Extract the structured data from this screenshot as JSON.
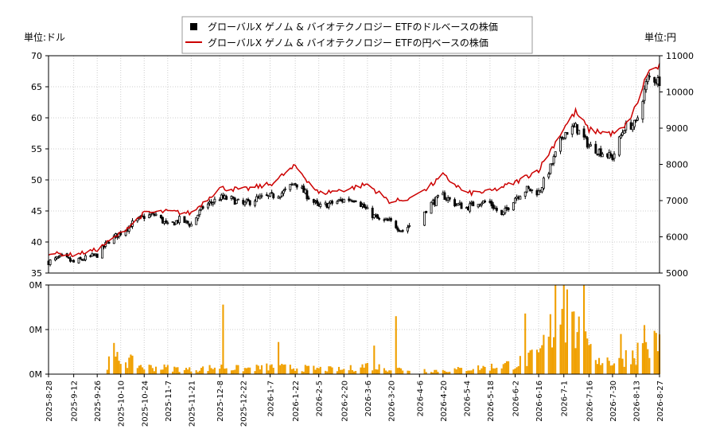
{
  "chart_data": [
    {
      "type": "candlestick",
      "legend": {
        "placement": "top-center",
        "entries": [
          {
            "label": "グローバルX ゲノム & バイオテクノロジー ETFのドルベースの株価",
            "color": "#000000",
            "marker": "square"
          },
          {
            "label": "グローバルX ゲノム & バイオテクノロジー ETFの円ベースの株価",
            "color": "#cc0000",
            "marker": "line"
          }
        ]
      },
      "ylabel_left": "単位:ドル",
      "ylabel_right": "単位:円",
      "ylim_left": [
        35,
        70
      ],
      "ylim_right": [
        5000,
        11000
      ],
      "yticks_left": [
        35,
        40,
        45,
        50,
        55,
        60,
        65,
        70
      ],
      "yticks_right": [
        5000,
        6000,
        7000,
        8000,
        9000,
        10000,
        11000
      ],
      "grid": true,
      "x_start": "2025-08-28",
      "x_end": "2026-08-27",
      "xticks": [
        "2025-8-28",
        "2025-9-12",
        "2025-9-26",
        "2025-10-10",
        "2025-10-24",
        "2025-11-7",
        "2025-11-21",
        "2025-12-8",
        "2025-12-22",
        "2026-1-7",
        "2026-1-22",
        "2026-2-5",
        "2026-2-20",
        "2026-3-6",
        "2026-3-20",
        "2026-4-6",
        "2026-4-20",
        "2026-5-4",
        "2026-5-18",
        "2026-6-2",
        "2026-6-16",
        "2026-7-1",
        "2026-7-16",
        "2026-7-30",
        "2026-8-13",
        "2026-8-27"
      ],
      "close_anchors": [
        [
          "2025-08-28",
          36.8
        ],
        [
          "2025-09-05",
          37.6
        ],
        [
          "2025-09-12",
          36.7
        ],
        [
          "2025-09-19",
          37.4
        ],
        [
          "2025-09-26",
          37.9
        ],
        [
          "2025-10-03",
          40.2
        ],
        [
          "2025-10-10",
          41.5
        ],
        [
          "2025-10-17",
          43.0
        ],
        [
          "2025-10-24",
          44.1
        ],
        [
          "2025-10-31",
          44.4
        ],
        [
          "2025-11-07",
          42.6
        ],
        [
          "2025-11-14",
          43.6
        ],
        [
          "2025-11-21",
          42.8
        ],
        [
          "2025-11-28",
          45.6
        ],
        [
          "2025-12-08",
          47.1
        ],
        [
          "2025-12-15",
          46.9
        ],
        [
          "2025-12-22",
          46.0
        ],
        [
          "2025-12-29",
          46.9
        ],
        [
          "2026-01-07",
          47.3
        ],
        [
          "2026-01-15",
          48.0
        ],
        [
          "2026-01-22",
          49.6
        ],
        [
          "2026-01-29",
          47.5
        ],
        [
          "2026-02-05",
          45.6
        ],
        [
          "2026-02-12",
          46.2
        ],
        [
          "2026-02-20",
          46.8
        ],
        [
          "2026-02-27",
          47.0
        ],
        [
          "2026-03-06",
          45.0
        ],
        [
          "2026-03-13",
          43.5
        ],
        [
          "2026-03-20",
          43.2
        ],
        [
          "2026-03-27",
          41.8
        ],
        [
          "2026-04-06",
          44.0
        ],
        [
          "2026-04-13",
          46.2
        ],
        [
          "2026-04-20",
          47.5
        ],
        [
          "2026-04-27",
          46.2
        ],
        [
          "2026-05-04",
          45.5
        ],
        [
          "2026-05-11",
          46.5
        ],
        [
          "2026-05-18",
          46.3
        ],
        [
          "2026-05-25",
          44.2
        ],
        [
          "2026-06-02",
          47.2
        ],
        [
          "2026-06-09",
          48.5
        ],
        [
          "2026-06-16",
          48.0
        ],
        [
          "2026-06-23",
          52.0
        ],
        [
          "2026-07-01",
          57.5
        ],
        [
          "2026-07-08",
          58.5
        ],
        [
          "2026-07-16",
          55.5
        ],
        [
          "2026-07-23",
          54.5
        ],
        [
          "2026-07-30",
          53.6
        ],
        [
          "2026-08-06",
          58.5
        ],
        [
          "2026-08-13",
          59.0
        ],
        [
          "2026-08-20",
          66.5
        ],
        [
          "2026-08-27",
          66.0
        ]
      ],
      "yen_anchors": [
        [
          "2025-08-28",
          5550
        ],
        [
          "2025-09-12",
          5500
        ],
        [
          "2025-09-26",
          5650
        ],
        [
          "2025-10-10",
          6100
        ],
        [
          "2025-10-24",
          6650
        ],
        [
          "2025-11-07",
          6700
        ],
        [
          "2025-11-21",
          6650
        ],
        [
          "2025-12-08",
          7350
        ],
        [
          "2025-12-22",
          7300
        ],
        [
          "2026-01-07",
          7450
        ],
        [
          "2026-01-22",
          7950
        ],
        [
          "2026-02-05",
          7200
        ],
        [
          "2026-02-20",
          7300
        ],
        [
          "2026-03-06",
          7450
        ],
        [
          "2026-03-20",
          6950
        ],
        [
          "2026-04-06",
          7150
        ],
        [
          "2026-04-20",
          7700
        ],
        [
          "2026-05-04",
          7200
        ],
        [
          "2026-05-18",
          7250
        ],
        [
          "2026-06-02",
          7500
        ],
        [
          "2026-06-16",
          7850
        ],
        [
          "2026-07-01",
          9000
        ],
        [
          "2026-07-08",
          9450
        ],
        [
          "2026-07-16",
          8950
        ],
        [
          "2026-07-30",
          8850
        ],
        [
          "2026-08-06",
          9000
        ],
        [
          "2026-08-13",
          9600
        ],
        [
          "2026-08-20",
          10550
        ],
        [
          "2026-08-27",
          10700
        ]
      ],
      "gaps": [
        [
          "2026-04-01",
          "2026-04-08"
        ]
      ]
    },
    {
      "type": "bar",
      "series_color": "#f0a000",
      "ylim": [
        0,
        1
      ],
      "yticks": [
        0,
        0.5,
        1
      ],
      "ytick_labels": [
        "0M",
        "0M",
        "0M"
      ],
      "grid": true,
      "volume_anchors": [
        [
          "2025-08-28",
          0
        ],
        [
          "2025-10-01",
          0
        ],
        [
          "2025-10-02",
          0.12
        ],
        [
          "2025-10-10",
          0.18
        ],
        [
          "2025-10-24",
          0.08
        ],
        [
          "2025-11-07",
          0.07
        ],
        [
          "2025-11-21",
          0.05
        ],
        [
          "2025-12-08",
          0.08
        ],
        [
          "2025-12-22",
          0.06
        ],
        [
          "2026-01-07",
          0.08
        ],
        [
          "2026-01-22",
          0.07
        ],
        [
          "2026-02-05",
          0.06
        ],
        [
          "2026-02-20",
          0.05
        ],
        [
          "2026-03-06",
          0.1
        ],
        [
          "2026-03-20",
          0.06
        ],
        [
          "2026-04-06",
          0.05
        ],
        [
          "2026-04-20",
          0.04
        ],
        [
          "2026-05-04",
          0.06
        ],
        [
          "2026-05-18",
          0.08
        ],
        [
          "2026-06-02",
          0.12
        ],
        [
          "2026-06-16",
          0.2
        ],
        [
          "2026-06-25",
          0.55
        ],
        [
          "2026-07-01",
          0.75
        ],
        [
          "2026-07-10",
          0.45
        ],
        [
          "2026-07-16",
          0.22
        ],
        [
          "2026-07-30",
          0.14
        ],
        [
          "2026-08-13",
          0.25
        ],
        [
          "2026-08-27",
          0.35
        ]
      ],
      "spikes": [
        [
          "2025-10-06",
          0.35
        ],
        [
          "2025-12-10",
          0.78
        ],
        [
          "2026-01-12",
          0.36
        ],
        [
          "2026-03-10",
          0.32
        ],
        [
          "2026-03-23",
          0.65
        ],
        [
          "2026-06-08",
          0.68
        ],
        [
          "2026-06-26",
          1.0
        ],
        [
          "2026-07-01",
          1.18
        ],
        [
          "2026-07-03",
          0.95
        ],
        [
          "2026-07-06",
          0.7
        ],
        [
          "2026-07-13",
          1.22
        ],
        [
          "2026-07-14",
          0.48
        ],
        [
          "2026-08-04",
          0.45
        ],
        [
          "2026-08-18",
          0.55
        ]
      ]
    }
  ]
}
